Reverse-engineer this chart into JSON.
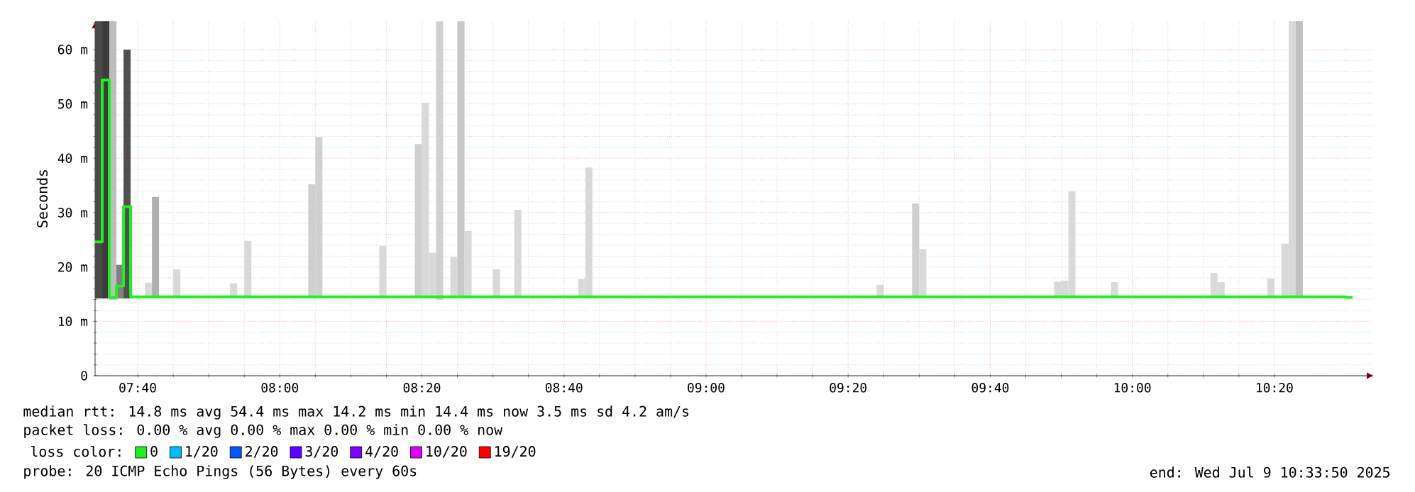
{
  "chart_data": {
    "type": "bar",
    "ylabel": "Seconds",
    "xlim": [
      "2025-07-09T07:34",
      "2025-07-09T10:34"
    ],
    "xticks": [
      {
        "value": "2025-07-09T07:40",
        "label": "07:40"
      },
      {
        "value": "2025-07-09T08:00",
        "label": "08:00"
      },
      {
        "value": "2025-07-09T08:20",
        "label": "08:20"
      },
      {
        "value": "2025-07-09T08:40",
        "label": "08:40"
      },
      {
        "value": "2025-07-09T09:00",
        "label": "09:00"
      },
      {
        "value": "2025-07-09T09:20",
        "label": "09:20"
      },
      {
        "value": "2025-07-09T09:40",
        "label": "09:40"
      },
      {
        "value": "2025-07-09T10:00",
        "label": "10:00"
      },
      {
        "value": "2025-07-09T10:20",
        "label": "10:20"
      }
    ],
    "ylim": [
      0,
      65.2
    ],
    "yticks": [
      {
        "value": 0,
        "label": "0"
      },
      {
        "value": 10,
        "label": "10 m"
      },
      {
        "value": 20,
        "label": "20 m"
      },
      {
        "value": 30,
        "label": "30 m"
      },
      {
        "value": 40,
        "label": "40 m"
      },
      {
        "value": 50,
        "label": "50 m"
      },
      {
        "value": 60,
        "label": "60 m"
      }
    ],
    "grid": true,
    "legend": "bottom left",
    "legend_title": "loss color:",
    "series": [
      {
        "x": [
          "2025-07-09T07:34",
          "2025-07-09T07:35",
          "2025-07-09T07:36",
          "2025-07-09T07:37",
          "2025-07-09T07:38",
          "2025-07-09T07:41",
          "2025-07-09T07:42",
          "2025-07-09T07:45",
          "2025-07-09T07:53",
          "2025-07-09T07:55",
          "2025-07-09T08:04",
          "2025-07-09T08:05",
          "2025-07-09T08:14",
          "2025-07-09T08:19",
          "2025-07-09T08:20",
          "2025-07-09T08:21",
          "2025-07-09T08:22",
          "2025-07-09T08:24",
          "2025-07-09T08:25",
          "2025-07-09T08:26",
          "2025-07-09T08:30",
          "2025-07-09T08:33",
          "2025-07-09T08:42",
          "2025-07-09T08:43",
          "2025-07-09T09:24",
          "2025-07-09T09:29",
          "2025-07-09T09:30",
          "2025-07-09T09:49",
          "2025-07-09T09:50",
          "2025-07-09T09:51",
          "2025-07-09T09:57",
          "2025-07-09T10:11",
          "2025-07-09T10:12",
          "2025-07-09T10:19",
          "2025-07-09T10:21",
          "2025-07-09T10:22",
          "2025-07-09T10:23"
        ],
        "base": [
          14.2,
          14.2,
          14.0,
          14.2,
          14.2,
          14.4,
          14.4,
          14.4,
          14.4,
          14.4,
          14.4,
          14.4,
          14.4,
          14.4,
          14.4,
          14.4,
          14.0,
          14.4,
          14.4,
          14.4,
          14.4,
          14.4,
          14.4,
          14.4,
          14.4,
          14.4,
          14.4,
          14.4,
          14.4,
          14.4,
          14.4,
          14.4,
          14.4,
          14.4,
          14.4,
          14.4,
          14.4
        ],
        "values": [
          51.0,
          51.0,
          51.2,
          6.2,
          45.8,
          2.7,
          18.5,
          5.2,
          2.6,
          10.4,
          20.8,
          29.5,
          9.5,
          28.2,
          35.8,
          8.2,
          51.2,
          7.5,
          50.8,
          12.2,
          5.2,
          16.1,
          3.4,
          23.9,
          2.3,
          17.3,
          8.9,
          2.9,
          3.1,
          19.5,
          2.8,
          4.5,
          2.8,
          3.5,
          9.9,
          50.8,
          50.8
        ],
        "colors": [
          "#4a4a4a",
          "#3c3c3c",
          "#bdbdbd",
          "#808080",
          "#505050",
          "#d9d9d9",
          "#b0b0b0",
          "#d9d9d9",
          "#d9d9d9",
          "#d9d9d9",
          "#cfcfcf",
          "#d0d0d0",
          "#d9d9d9",
          "#cfcfcf",
          "#d9d9d9",
          "#d9d9d9",
          "#d0d0d0",
          "#d9d9d9",
          "#c8c8c8",
          "#d9d9d9",
          "#d9d9d9",
          "#d9d9d9",
          "#d9d9d9",
          "#d9d9d9",
          "#d9d9d9",
          "#cfcfcf",
          "#d9d9d9",
          "#d9d9d9",
          "#d9d9d9",
          "#d9d9d9",
          "#d9d9d9",
          "#d9d9d9",
          "#d9d9d9",
          "#d9d9d9",
          "#d9d9d9",
          "#d9d9d9",
          "#c0c0c0"
        ]
      },
      {
        "type": "step",
        "name": "0",
        "color": "#22ee22",
        "x": [
          "2025-07-09T07:34",
          "2025-07-09T07:35",
          "2025-07-09T07:36",
          "2025-07-09T07:37",
          "2025-07-09T07:38",
          "2025-07-09T07:39",
          "2025-07-09T10:30",
          "2025-07-09T10:31"
        ],
        "values": [
          24.6,
          54.4,
          14.4,
          16.5,
          31.1,
          14.5,
          14.4,
          14.4
        ]
      },
      {
        "type": "step",
        "name": "1/20",
        "color": "#00b8ff"
      },
      {
        "type": "step",
        "name": "2/20",
        "color": "#0059ff"
      },
      {
        "type": "step",
        "name": "3/20",
        "color": "#5e00ff"
      },
      {
        "type": "step",
        "name": "4/20",
        "color": "#7e00ff"
      },
      {
        "type": "step",
        "name": "10/20",
        "color": "#dd00ff"
      },
      {
        "type": "step",
        "name": "19/20",
        "color": "#ff0000"
      }
    ],
    "annotations": [
      "median rtt: 14.8 ms avg 54.4 ms max 14.2 ms min 14.4 ms now 3.5 ms sd 4.2 am/s",
      "packet loss: 0.00 % avg 0.00 % max 0.00 % min 0.00 % now",
      "probe: 20 ICMP Echo Pings (56 Bytes) every 60s",
      "end: Wed Jul 9 10:33:50 2025"
    ]
  }
}
